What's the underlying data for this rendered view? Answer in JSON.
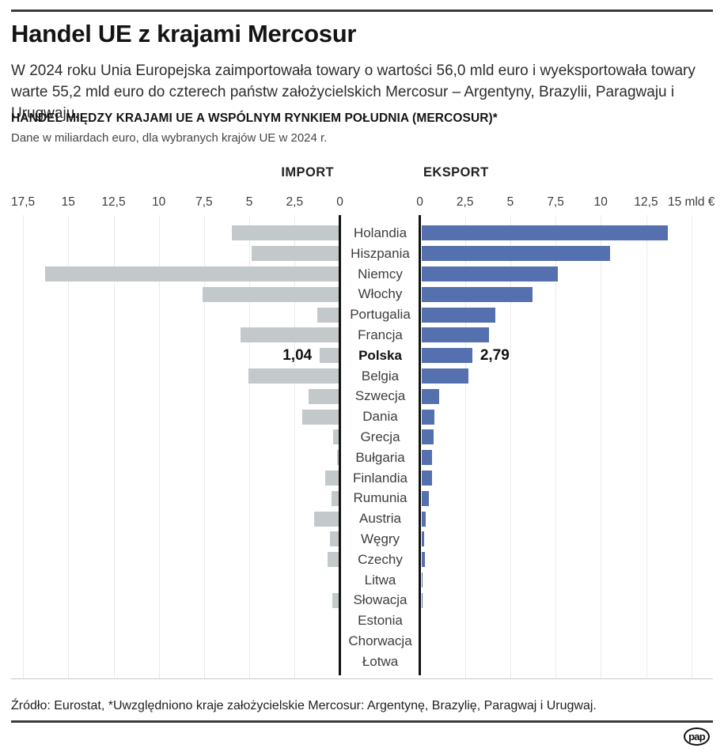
{
  "header": {
    "title": "Handel UE z krajami Mercosur",
    "intro": "W 2024 roku Unia Europejska zaimportowała towary o wartości 56,0 mld euro i wyeksportowała towary warte 55,2 mld euro do czterech państw założycielskich Mercosur – Argentyny, Brazylii, Paragwaju i Urugwaju."
  },
  "chart": {
    "heading": "HANDEL MIĘDZY KRAJAMI UE A WSPÓLNYM RYNKIEM POŁUDNIA (MERCOSUR)*",
    "subheading": "Dane w miliardach euro, dla wybranych krajów UE w 2024 r.",
    "left_header": "IMPORT",
    "right_header": "EKSPORT"
  },
  "chart_data": {
    "type": "bar",
    "layout": "diverging-horizontal",
    "unit": "mld euro",
    "grid": true,
    "categories": [
      "Holandia",
      "Hiszpania",
      "Niemcy",
      "Włochy",
      "Portugalia",
      "Francja",
      "Polska",
      "Belgia",
      "Szwecja",
      "Dania",
      "Grecja",
      "Bułgaria",
      "Finlandia",
      "Rumunia",
      "Austria",
      "Węgry",
      "Czechy",
      "Litwa",
      "Słowacja",
      "Estonia",
      "Chorwacja",
      "Łotwa"
    ],
    "series": [
      {
        "name": "IMPORT",
        "color": "#c3c8ca",
        "values": [
          5.9,
          4.8,
          16.2,
          7.5,
          1.2,
          5.4,
          1.04,
          5.0,
          1.65,
          2.0,
          0.3,
          0.1,
          0.75,
          0.4,
          1.35,
          0.5,
          0.6,
          0,
          0.35,
          0,
          0,
          0
        ]
      },
      {
        "name": "EKSPORT",
        "color": "#5470ae",
        "values": [
          13.6,
          10.4,
          7.5,
          6.1,
          4.05,
          3.7,
          2.79,
          2.6,
          0.95,
          0.7,
          0.65,
          0.55,
          0.55,
          0.4,
          0.2,
          0.12,
          0.17,
          0.04,
          0.06,
          0,
          0,
          0
        ]
      }
    ],
    "highlight": {
      "category": "Polska",
      "import_label": "1,04",
      "eksport_label": "2,79"
    },
    "left_axis": {
      "max": 17.5,
      "ticks": [
        17.5,
        15,
        12.5,
        10,
        7.5,
        5,
        2.5,
        0
      ],
      "tick_labels": [
        "17,5",
        "15",
        "12,5",
        "10",
        "7,5",
        "5",
        "2,5",
        "0"
      ]
    },
    "right_axis": {
      "max": 15,
      "ticks": [
        0,
        2.5,
        5,
        7.5,
        10,
        12.5,
        15
      ],
      "tick_labels": [
        "0",
        "2,5",
        "5",
        "7,5",
        "10",
        "12,5",
        "15 mld €"
      ]
    }
  },
  "footer": {
    "source": "Źródło: Eurostat, *Uwzględniono kraje założycielskie Mercosur: Argentynę, Brazylię, Paragwaj i Urugwaj.",
    "logo_text": "pap"
  }
}
